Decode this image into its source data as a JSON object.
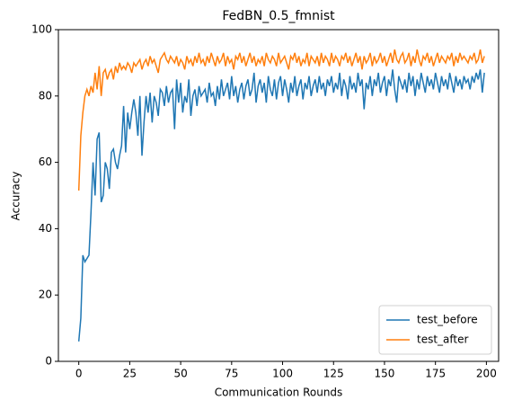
{
  "chart_data": {
    "type": "line",
    "title": "FedBN_0.5_fmnist",
    "xlabel": "Communication Rounds",
    "ylabel": "Accuracy",
    "x": [
      0,
      1,
      2,
      3,
      4,
      5,
      6,
      7,
      8,
      9,
      10,
      11,
      12,
      13,
      14,
      15,
      16,
      17,
      18,
      19,
      20,
      21,
      22,
      23,
      24,
      25,
      26,
      27,
      28,
      29,
      30,
      31,
      32,
      33,
      34,
      35,
      36,
      37,
      38,
      39,
      40,
      41,
      42,
      43,
      44,
      45,
      46,
      47,
      48,
      49,
      50,
      51,
      52,
      53,
      54,
      55,
      56,
      57,
      58,
      59,
      60,
      61,
      62,
      63,
      64,
      65,
      66,
      67,
      68,
      69,
      70,
      71,
      72,
      73,
      74,
      75,
      76,
      77,
      78,
      79,
      80,
      81,
      82,
      83,
      84,
      85,
      86,
      87,
      88,
      89,
      90,
      91,
      92,
      93,
      94,
      95,
      96,
      97,
      98,
      99,
      100,
      101,
      102,
      103,
      104,
      105,
      106,
      107,
      108,
      109,
      110,
      111,
      112,
      113,
      114,
      115,
      116,
      117,
      118,
      119,
      120,
      121,
      122,
      123,
      124,
      125,
      126,
      127,
      128,
      129,
      130,
      131,
      132,
      133,
      134,
      135,
      136,
      137,
      138,
      139,
      140,
      141,
      142,
      143,
      144,
      145,
      146,
      147,
      148,
      149,
      150,
      151,
      152,
      153,
      154,
      155,
      156,
      157,
      158,
      159,
      160,
      161,
      162,
      163,
      164,
      165,
      166,
      167,
      168,
      169,
      170,
      171,
      172,
      173,
      174,
      175,
      176,
      177,
      178,
      179,
      180,
      181,
      182,
      183,
      184,
      185,
      186,
      187,
      188,
      189,
      190,
      191,
      192,
      193,
      194,
      195,
      196,
      197,
      198,
      199
    ],
    "series": [
      {
        "name": "test_before",
        "color": "#1f77b4",
        "values": [
          6,
          13,
          32,
          30,
          31,
          32,
          45,
          60,
          50,
          67,
          69,
          48,
          50,
          60,
          58,
          52,
          63,
          64,
          60,
          58,
          62,
          65,
          77,
          63,
          75,
          70,
          75,
          79,
          75,
          68,
          80,
          62,
          72,
          80,
          75,
          81,
          72,
          80,
          78,
          74,
          82,
          81,
          77,
          83,
          78,
          81,
          82,
          70,
          85,
          78,
          84,
          75,
          80,
          78,
          85,
          74,
          80,
          82,
          77,
          83,
          80,
          81,
          82,
          78,
          84,
          80,
          81,
          77,
          83,
          79,
          85,
          80,
          82,
          84,
          79,
          86,
          80,
          83,
          78,
          82,
          84,
          79,
          83,
          85,
          80,
          82,
          87,
          78,
          83,
          85,
          81,
          84,
          78,
          86,
          82,
          80,
          85,
          79,
          84,
          86,
          80,
          85,
          82,
          78,
          84,
          81,
          86,
          80,
          83,
          85,
          79,
          84,
          82,
          86,
          80,
          83,
          85,
          81,
          86,
          82,
          84,
          80,
          85,
          83,
          86,
          81,
          84,
          82,
          87,
          80,
          85,
          83,
          79,
          86,
          82,
          84,
          81,
          87,
          83,
          85,
          76,
          84,
          82,
          86,
          80,
          85,
          83,
          87,
          81,
          84,
          86,
          80,
          85,
          83,
          88,
          82,
          78,
          86,
          84,
          82,
          85,
          81,
          87,
          83,
          86,
          80,
          85,
          82,
          87,
          84,
          81,
          86,
          83,
          85,
          82,
          87,
          84,
          81,
          86,
          83,
          85,
          82,
          87,
          84,
          81,
          86,
          83,
          85,
          82,
          86,
          84,
          85,
          82,
          86,
          84,
          87,
          85,
          88,
          81,
          87
        ]
      },
      {
        "name": "test_after",
        "color": "#ff7f0e",
        "values": [
          51.5,
          68,
          75,
          80,
          82,
          80,
          83,
          81,
          87,
          82,
          89,
          80,
          87,
          88,
          85,
          87,
          88,
          85,
          89,
          87,
          90,
          88,
          89,
          88,
          90,
          89,
          87,
          90,
          89,
          90,
          91,
          88,
          90,
          91,
          89,
          92,
          90,
          91,
          89,
          87,
          91,
          92,
          93,
          91,
          90,
          92,
          91,
          90,
          92,
          89,
          91,
          90,
          88,
          92,
          90,
          91,
          89,
          92,
          90,
          93,
          90,
          91,
          89,
          92,
          90,
          93,
          91,
          89,
          92,
          90,
          91,
          93,
          89,
          92,
          90,
          91,
          88,
          92,
          91,
          93,
          90,
          92,
          89,
          91,
          93,
          90,
          92,
          89,
          91,
          90,
          92,
          89,
          93,
          91,
          90,
          92,
          91,
          89,
          93,
          90,
          91,
          92,
          90,
          88,
          92,
          91,
          93,
          90,
          92,
          89,
          91,
          90,
          93,
          89,
          92,
          91,
          90,
          92,
          89,
          93,
          90,
          92,
          91,
          89,
          93,
          90,
          92,
          91,
          89,
          92,
          91,
          93,
          90,
          92,
          89,
          91,
          93,
          90,
          92,
          88,
          92,
          90,
          91,
          93,
          89,
          92,
          90,
          91,
          93,
          90,
          92,
          89,
          91,
          93,
          90,
          94,
          91,
          90,
          92,
          93,
          90,
          91,
          93,
          89,
          92,
          90,
          94,
          91,
          89,
          92,
          91,
          93,
          90,
          92,
          89,
          91,
          93,
          90,
          92,
          91,
          90,
          92,
          91,
          93,
          89,
          92,
          90,
          93,
          91,
          92,
          91,
          90,
          92,
          91,
          93,
          90,
          91,
          94,
          90,
          92
        ]
      }
    ],
    "xlim": [
      -10,
      206
    ],
    "ylim": [
      0,
      100
    ],
    "xticks": [
      0,
      25,
      50,
      75,
      100,
      125,
      150,
      175,
      200
    ],
    "yticks": [
      0,
      20,
      40,
      60,
      80,
      100
    ],
    "legend": "lower right"
  }
}
